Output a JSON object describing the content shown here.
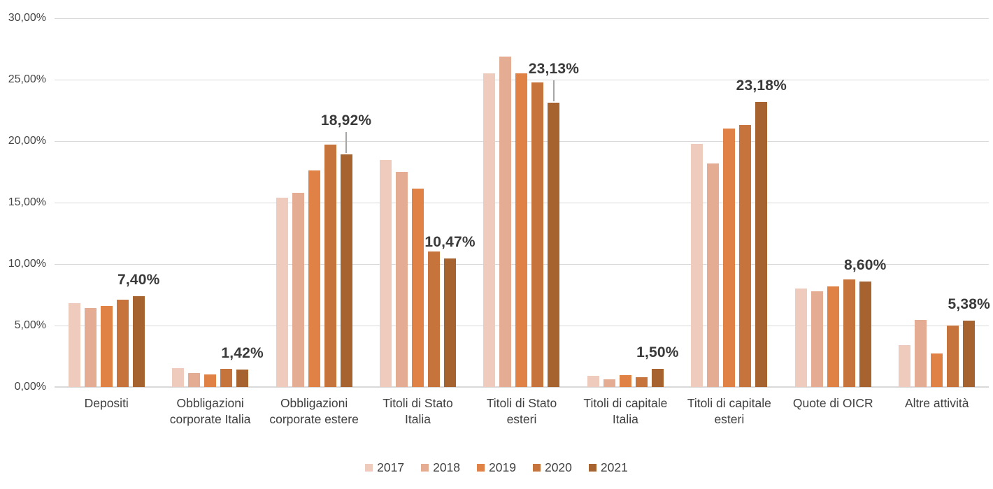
{
  "chart_data": {
    "type": "bar",
    "title": "",
    "xlabel": "",
    "ylabel": "",
    "categories": [
      "Depositi",
      "Obbligazioni corporate Italia",
      "Obbligazioni corporate estere",
      "Titoli di Stato Italia",
      "Titoli di Stato esteri",
      "Titoli di capitale Italia",
      "Titoli di capitale esteri",
      "Quote di OICR",
      "Altre attività"
    ],
    "series": [
      {
        "name": "2017",
        "color": "#EECBBD",
        "values": [
          6.8,
          1.55,
          15.4,
          18.45,
          25.5,
          0.9,
          19.75,
          8.0,
          3.4
        ]
      },
      {
        "name": "2018",
        "color": "#E4AC92",
        "values": [
          6.4,
          1.15,
          15.8,
          17.5,
          26.9,
          0.6,
          18.2,
          7.8,
          5.45
        ]
      },
      {
        "name": "2019",
        "color": "#E08245",
        "values": [
          6.6,
          1.05,
          17.6,
          16.15,
          25.5,
          0.95,
          21.0,
          8.2,
          2.7
        ]
      },
      {
        "name": "2020",
        "color": "#C6743C",
        "values": [
          7.1,
          1.45,
          19.7,
          11.0,
          24.8,
          0.8,
          21.3,
          8.75,
          5.0
        ]
      },
      {
        "name": "2021",
        "color": "#A6622F",
        "values": [
          7.4,
          1.42,
          18.92,
          10.47,
          23.13,
          1.5,
          23.18,
          8.6,
          5.38
        ]
      }
    ],
    "data_labels": {
      "on_series": "2021",
      "labels": [
        "7,40%",
        "1,42%",
        "18,92%",
        "10,47%",
        "23,13%",
        "1,50%",
        "23,18%",
        "8,60%",
        "5,38%"
      ],
      "leader_line_category_indices": [
        2,
        4
      ]
    },
    "y_axis": {
      "min": 0,
      "max": 30,
      "tick_values": [
        0,
        5,
        10,
        15,
        20,
        25,
        30
      ],
      "tick_labels": [
        "0,00%",
        "5,00%",
        "10,00%",
        "15,00%",
        "20,00%",
        "25,00%",
        "30,00%"
      ]
    },
    "legend": {
      "position": "bottom",
      "entries": [
        "2017",
        "2018",
        "2019",
        "2020",
        "2021"
      ]
    },
    "grid": true,
    "colors": {
      "gridline": "#d9d9d9",
      "axis_text": "#444444",
      "category_text": "#3f3f3f",
      "data_label_text": "#3a3a3a",
      "leader_line": "#a6a6a6",
      "background": "#ffffff"
    }
  }
}
